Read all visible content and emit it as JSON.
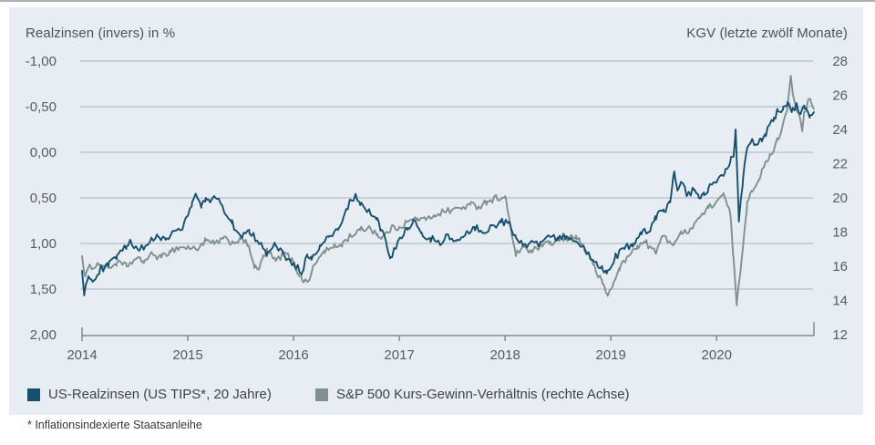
{
  "panel": {
    "background": "#e8edf3"
  },
  "chart_data": {
    "type": "line",
    "left_axis": {
      "label": "Realzinsen (invers) in %",
      "tick_labels": [
        "-1,00",
        "-0,50",
        "0,00",
        "0,50",
        "1,00",
        "1,50",
        "2,00"
      ],
      "tick_values": [
        -1.0,
        -0.5,
        0.0,
        0.5,
        1.0,
        1.5,
        2.0
      ],
      "range": [
        -1.0,
        2.0
      ],
      "inverted": true
    },
    "right_axis": {
      "label": "KGV (letzte zwölf Monate)",
      "tick_labels": [
        "28",
        "26",
        "24",
        "22",
        "20",
        "18",
        "16",
        "14",
        "12"
      ],
      "tick_values": [
        28,
        26,
        24,
        22,
        20,
        18,
        16,
        14,
        12
      ],
      "range": [
        12,
        28
      ]
    },
    "x_axis": {
      "tick_labels": [
        "2014",
        "2015",
        "2016",
        "2017",
        "2018",
        "2019",
        "2020"
      ],
      "tick_values": [
        2014,
        2015,
        2016,
        2017,
        2018,
        2019,
        2020
      ],
      "range": [
        2014.0,
        2020.92
      ]
    },
    "grid": true,
    "colors": {
      "gridline": "#a9b2bc",
      "axis": "#6b7580"
    },
    "series": [
      {
        "name": "S&P 500 Kurs-Gewinn-Verhältnis (rechte Achse)",
        "axis": "right",
        "color": "#7e918f",
        "noise": 0.2,
        "points": [
          [
            2014.0,
            16.6
          ],
          [
            2014.03,
            15.4
          ],
          [
            2014.08,
            16.0
          ],
          [
            2014.17,
            16.1
          ],
          [
            2014.25,
            15.9
          ],
          [
            2014.33,
            16.2
          ],
          [
            2014.42,
            16.0
          ],
          [
            2014.5,
            16.4
          ],
          [
            2014.58,
            16.3
          ],
          [
            2014.67,
            16.7
          ],
          [
            2014.75,
            16.5
          ],
          [
            2014.83,
            16.9
          ],
          [
            2014.92,
            17.1
          ],
          [
            2015.0,
            17.1
          ],
          [
            2015.08,
            17.0
          ],
          [
            2015.17,
            17.5
          ],
          [
            2015.25,
            17.3
          ],
          [
            2015.33,
            17.6
          ],
          [
            2015.42,
            17.4
          ],
          [
            2015.5,
            17.6
          ],
          [
            2015.58,
            17.2
          ],
          [
            2015.63,
            15.9
          ],
          [
            2015.67,
            15.8
          ],
          [
            2015.71,
            16.5
          ],
          [
            2015.75,
            16.9
          ],
          [
            2015.83,
            16.3
          ],
          [
            2015.92,
            16.8
          ],
          [
            2016.0,
            16.2
          ],
          [
            2016.08,
            15.2
          ],
          [
            2016.13,
            15.1
          ],
          [
            2016.21,
            16.2
          ],
          [
            2016.29,
            16.9
          ],
          [
            2016.38,
            17.1
          ],
          [
            2016.46,
            17.3
          ],
          [
            2016.54,
            17.8
          ],
          [
            2016.63,
            18.1
          ],
          [
            2016.71,
            18.3
          ],
          [
            2016.79,
            17.9
          ],
          [
            2016.83,
            17.6
          ],
          [
            2016.92,
            18.2
          ],
          [
            2017.0,
            18.3
          ],
          [
            2017.08,
            18.6
          ],
          [
            2017.17,
            18.8
          ],
          [
            2017.25,
            18.7
          ],
          [
            2017.33,
            19.0
          ],
          [
            2017.42,
            19.2
          ],
          [
            2017.5,
            19.3
          ],
          [
            2017.58,
            19.4
          ],
          [
            2017.67,
            19.6
          ],
          [
            2017.75,
            19.5
          ],
          [
            2017.83,
            19.8
          ],
          [
            2017.92,
            20.0
          ],
          [
            2018.0,
            20.1
          ],
          [
            2018.06,
            18.0
          ],
          [
            2018.1,
            16.6
          ],
          [
            2018.17,
            17.2
          ],
          [
            2018.25,
            16.8
          ],
          [
            2018.33,
            17.2
          ],
          [
            2018.42,
            17.3
          ],
          [
            2018.5,
            17.5
          ],
          [
            2018.58,
            17.6
          ],
          [
            2018.67,
            17.8
          ],
          [
            2018.71,
            17.4
          ],
          [
            2018.79,
            16.8
          ],
          [
            2018.83,
            16.1
          ],
          [
            2018.92,
            15.0
          ],
          [
            2018.97,
            14.3
          ],
          [
            2019.02,
            14.9
          ],
          [
            2019.08,
            15.9
          ],
          [
            2019.17,
            16.6
          ],
          [
            2019.25,
            17.2
          ],
          [
            2019.33,
            17.4
          ],
          [
            2019.42,
            16.8
          ],
          [
            2019.5,
            17.8
          ],
          [
            2019.58,
            17.3
          ],
          [
            2019.67,
            17.9
          ],
          [
            2019.75,
            18.2
          ],
          [
            2019.83,
            18.8
          ],
          [
            2019.92,
            19.4
          ],
          [
            2020.0,
            19.8
          ],
          [
            2020.06,
            20.2
          ],
          [
            2020.1,
            19.6
          ],
          [
            2020.13,
            19.0
          ],
          [
            2020.16,
            16.5
          ],
          [
            2020.19,
            13.7
          ],
          [
            2020.23,
            16.0
          ],
          [
            2020.27,
            18.5
          ],
          [
            2020.29,
            19.8
          ],
          [
            2020.33,
            20.4
          ],
          [
            2020.42,
            21.4
          ],
          [
            2020.5,
            22.4
          ],
          [
            2020.58,
            23.4
          ],
          [
            2020.63,
            24.4
          ],
          [
            2020.67,
            25.4
          ],
          [
            2020.7,
            27.1
          ],
          [
            2020.73,
            25.8
          ],
          [
            2020.77,
            25.0
          ],
          [
            2020.81,
            23.9
          ],
          [
            2020.83,
            25.0
          ],
          [
            2020.88,
            25.8
          ],
          [
            2020.92,
            25.2
          ]
        ]
      },
      {
        "name": "US-Realzinsen (US TIPS*, 20 Jahre)",
        "axis": "left",
        "color": "#17506e",
        "noise": 0.042,
        "points": [
          [
            2014.0,
            1.3
          ],
          [
            2014.02,
            1.57
          ],
          [
            2014.06,
            1.36
          ],
          [
            2014.1,
            1.42
          ],
          [
            2014.17,
            1.28
          ],
          [
            2014.25,
            1.25
          ],
          [
            2014.33,
            1.13
          ],
          [
            2014.42,
            1.03
          ],
          [
            2014.46,
            0.97
          ],
          [
            2014.54,
            1.08
          ],
          [
            2014.63,
            1.0
          ],
          [
            2014.71,
            0.9
          ],
          [
            2014.79,
            0.96
          ],
          [
            2014.88,
            0.86
          ],
          [
            2014.96,
            0.8
          ],
          [
            2015.04,
            0.55
          ],
          [
            2015.08,
            0.47
          ],
          [
            2015.13,
            0.58
          ],
          [
            2015.17,
            0.5
          ],
          [
            2015.21,
            0.55
          ],
          [
            2015.25,
            0.48
          ],
          [
            2015.33,
            0.6
          ],
          [
            2015.42,
            0.78
          ],
          [
            2015.5,
            0.92
          ],
          [
            2015.58,
            0.85
          ],
          [
            2015.67,
            1.0
          ],
          [
            2015.75,
            1.1
          ],
          [
            2015.83,
            1.02
          ],
          [
            2015.92,
            1.15
          ],
          [
            2016.0,
            1.22
          ],
          [
            2016.08,
            1.32
          ],
          [
            2016.13,
            1.12
          ],
          [
            2016.17,
            1.18
          ],
          [
            2016.25,
            1.02
          ],
          [
            2016.33,
            0.92
          ],
          [
            2016.42,
            0.85
          ],
          [
            2016.5,
            0.62
          ],
          [
            2016.54,
            0.52
          ],
          [
            2016.58,
            0.48
          ],
          [
            2016.63,
            0.58
          ],
          [
            2016.71,
            0.63
          ],
          [
            2016.79,
            0.72
          ],
          [
            2016.83,
            0.85
          ],
          [
            2016.88,
            1.02
          ],
          [
            2016.92,
            1.15
          ],
          [
            2017.0,
            0.95
          ],
          [
            2017.08,
            0.83
          ],
          [
            2017.13,
            0.76
          ],
          [
            2017.21,
            0.88
          ],
          [
            2017.29,
            0.94
          ],
          [
            2017.38,
            1.0
          ],
          [
            2017.46,
            0.9
          ],
          [
            2017.54,
            0.97
          ],
          [
            2017.63,
            0.88
          ],
          [
            2017.71,
            0.82
          ],
          [
            2017.79,
            0.88
          ],
          [
            2017.88,
            0.8
          ],
          [
            2017.96,
            0.77
          ],
          [
            2018.04,
            0.76
          ],
          [
            2018.1,
            0.93
          ],
          [
            2018.17,
            1.03
          ],
          [
            2018.25,
            0.97
          ],
          [
            2018.33,
            1.0
          ],
          [
            2018.42,
            0.92
          ],
          [
            2018.5,
            0.96
          ],
          [
            2018.58,
            0.92
          ],
          [
            2018.67,
            0.98
          ],
          [
            2018.75,
            1.05
          ],
          [
            2018.83,
            1.18
          ],
          [
            2018.92,
            1.28
          ],
          [
            2018.96,
            1.33
          ],
          [
            2019.04,
            1.15
          ],
          [
            2019.13,
            1.06
          ],
          [
            2019.21,
            1.0
          ],
          [
            2019.29,
            0.9
          ],
          [
            2019.38,
            0.82
          ],
          [
            2019.42,
            0.7
          ],
          [
            2019.5,
            0.65
          ],
          [
            2019.56,
            0.55
          ],
          [
            2019.6,
            0.21
          ],
          [
            2019.63,
            0.42
          ],
          [
            2019.67,
            0.33
          ],
          [
            2019.71,
            0.45
          ],
          [
            2019.79,
            0.42
          ],
          [
            2019.83,
            0.5
          ],
          [
            2019.88,
            0.44
          ],
          [
            2019.92,
            0.4
          ],
          [
            2020.0,
            0.33
          ],
          [
            2020.08,
            0.22
          ],
          [
            2020.13,
            0.1
          ],
          [
            2020.16,
            0.05
          ],
          [
            2020.18,
            -0.25
          ],
          [
            2020.2,
            0.4
          ],
          [
            2020.21,
            0.76
          ],
          [
            2020.25,
            0.28
          ],
          [
            2020.29,
            -0.05
          ],
          [
            2020.33,
            -0.13
          ],
          [
            2020.38,
            -0.08
          ],
          [
            2020.42,
            -0.15
          ],
          [
            2020.46,
            -0.2
          ],
          [
            2020.5,
            -0.3
          ],
          [
            2020.54,
            -0.38
          ],
          [
            2020.58,
            -0.45
          ],
          [
            2020.63,
            -0.5
          ],
          [
            2020.67,
            -0.55
          ],
          [
            2020.71,
            -0.44
          ],
          [
            2020.75,
            -0.52
          ],
          [
            2020.79,
            -0.42
          ],
          [
            2020.83,
            -0.48
          ],
          [
            2020.88,
            -0.38
          ],
          [
            2020.92,
            -0.44
          ]
        ]
      }
    ]
  },
  "legend": {
    "items": [
      {
        "label": "US-Realzinsen (US TIPS*, 20 Jahre)",
        "color": "#17506e"
      },
      {
        "label": "S&P 500 Kurs-Gewinn-Verhältnis (rechte Achse)",
        "color": "#7e918f"
      }
    ]
  },
  "footnote": "* Inflationsindexierte Staatsanleihe"
}
